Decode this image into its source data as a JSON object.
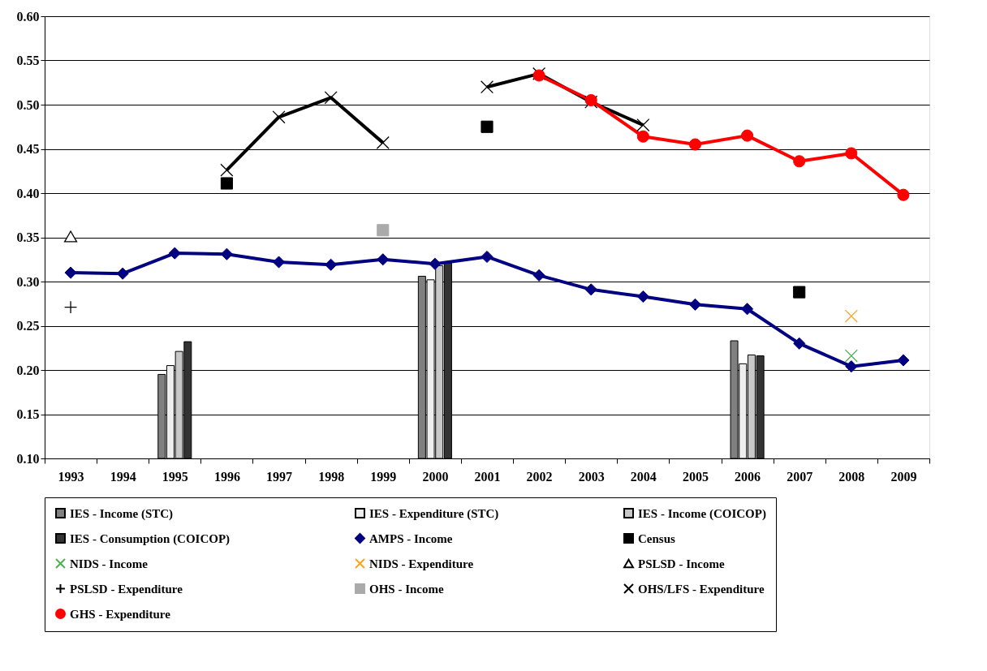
{
  "chart_data": {
    "type": "line",
    "categories": [
      "1993",
      "1994",
      "1995",
      "1996",
      "1997",
      "1998",
      "1999",
      "2000",
      "2001",
      "2002",
      "2003",
      "2004",
      "2005",
      "2006",
      "2007",
      "2008",
      "2009"
    ],
    "ylim": [
      0.1,
      0.6
    ],
    "yticks": [
      {
        "value": 0.1,
        "label": "0.10"
      },
      {
        "value": 0.15,
        "label": "0.15"
      },
      {
        "value": 0.2,
        "label": "0.20"
      },
      {
        "value": 0.25,
        "label": "0.25"
      },
      {
        "value": 0.3,
        "label": "0.30"
      },
      {
        "value": 0.35,
        "label": "0.35"
      },
      {
        "value": 0.4,
        "label": "0.40"
      },
      {
        "value": 0.45,
        "label": "0.45"
      },
      {
        "value": 0.5,
        "label": "0.50"
      },
      {
        "value": 0.55,
        "label": "0.55"
      },
      {
        "value": 0.6,
        "label": "0.60"
      }
    ],
    "grid": "y",
    "legend": "bottom",
    "line_style": "solid",
    "series": [
      {
        "name": "IES - Income (STC)",
        "type": "bar",
        "color": "#808080",
        "values": [
          null,
          null,
          0.195,
          null,
          null,
          null,
          null,
          0.306,
          null,
          null,
          null,
          null,
          null,
          0.233,
          null,
          null,
          null
        ]
      },
      {
        "name": "IES - Expenditure (STC)",
        "type": "bar",
        "color": "#eeeeee",
        "values": [
          null,
          null,
          0.205,
          null,
          null,
          null,
          null,
          0.302,
          null,
          null,
          null,
          null,
          null,
          0.207,
          null,
          null,
          null
        ]
      },
      {
        "name": "IES - Income (COICOP)",
        "type": "bar",
        "color": "#c8c8c8",
        "values": [
          null,
          null,
          0.221,
          null,
          null,
          null,
          null,
          0.318,
          null,
          null,
          null,
          null,
          null,
          0.217,
          null,
          null,
          null
        ]
      },
      {
        "name": "IES - Consumption (COICOP)",
        "type": "bar",
        "color": "#333333",
        "values": [
          null,
          null,
          0.232,
          null,
          null,
          null,
          null,
          0.321,
          null,
          null,
          null,
          null,
          null,
          0.216,
          null,
          null,
          null
        ]
      },
      {
        "name": "AMPS - Income",
        "marker": "diamond",
        "color": "#000080",
        "values": [
          0.31,
          0.309,
          0.332,
          0.331,
          0.322,
          0.319,
          0.325,
          0.32,
          0.328,
          0.307,
          0.291,
          0.283,
          0.274,
          0.269,
          0.23,
          0.204,
          0.211
        ]
      },
      {
        "name": "Census",
        "type": "scatter",
        "marker": "square",
        "color": "#000000",
        "values": [
          null,
          null,
          null,
          0.411,
          null,
          null,
          null,
          null,
          0.475,
          null,
          null,
          null,
          null,
          null,
          0.288,
          null,
          null
        ]
      },
      {
        "name": "NIDS - Income",
        "type": "scatter",
        "marker": "cross",
        "color": "#4caf50",
        "values": [
          null,
          null,
          null,
          null,
          null,
          null,
          null,
          null,
          null,
          null,
          null,
          null,
          null,
          null,
          null,
          0.216,
          null
        ]
      },
      {
        "name": "NIDS - Expenditure",
        "type": "scatter",
        "marker": "cross",
        "color": "#f5a623",
        "values": [
          null,
          null,
          null,
          null,
          null,
          null,
          null,
          null,
          null,
          null,
          null,
          null,
          null,
          null,
          null,
          0.261,
          null
        ]
      },
      {
        "name": "PSLSD - Income",
        "type": "scatter",
        "marker": "triangle",
        "color": "#000000",
        "values": [
          0.351,
          null,
          null,
          null,
          null,
          null,
          null,
          null,
          null,
          null,
          null,
          null,
          null,
          null,
          null,
          null,
          null
        ]
      },
      {
        "name": "PSLSD - Expenditure",
        "type": "scatter",
        "marker": "plus",
        "color": "#000000",
        "values": [
          0.271,
          null,
          null,
          null,
          null,
          null,
          null,
          null,
          null,
          null,
          null,
          null,
          null,
          null,
          null,
          null,
          null
        ]
      },
      {
        "name": "OHS - Income",
        "type": "scatter",
        "marker": "square",
        "color": "#aaaaaa",
        "values": [
          null,
          null,
          null,
          null,
          null,
          null,
          0.358,
          null,
          null,
          null,
          null,
          null,
          null,
          null,
          null,
          null,
          null
        ]
      },
      {
        "name": "OHS/LFS - Expenditure",
        "marker": "cross",
        "color": "#000000",
        "values": [
          null,
          null,
          null,
          0.426,
          0.486,
          0.508,
          0.457,
          null,
          0.52,
          0.535,
          0.503,
          0.477,
          null,
          null,
          null,
          null,
          null
        ]
      },
      {
        "name": "GHS - Expenditure",
        "marker": "circle",
        "color": "#ff0000",
        "values": [
          null,
          null,
          null,
          null,
          null,
          null,
          null,
          null,
          null,
          0.533,
          0.505,
          0.464,
          0.455,
          0.465,
          0.436,
          0.445,
          0.398
        ]
      }
    ]
  }
}
